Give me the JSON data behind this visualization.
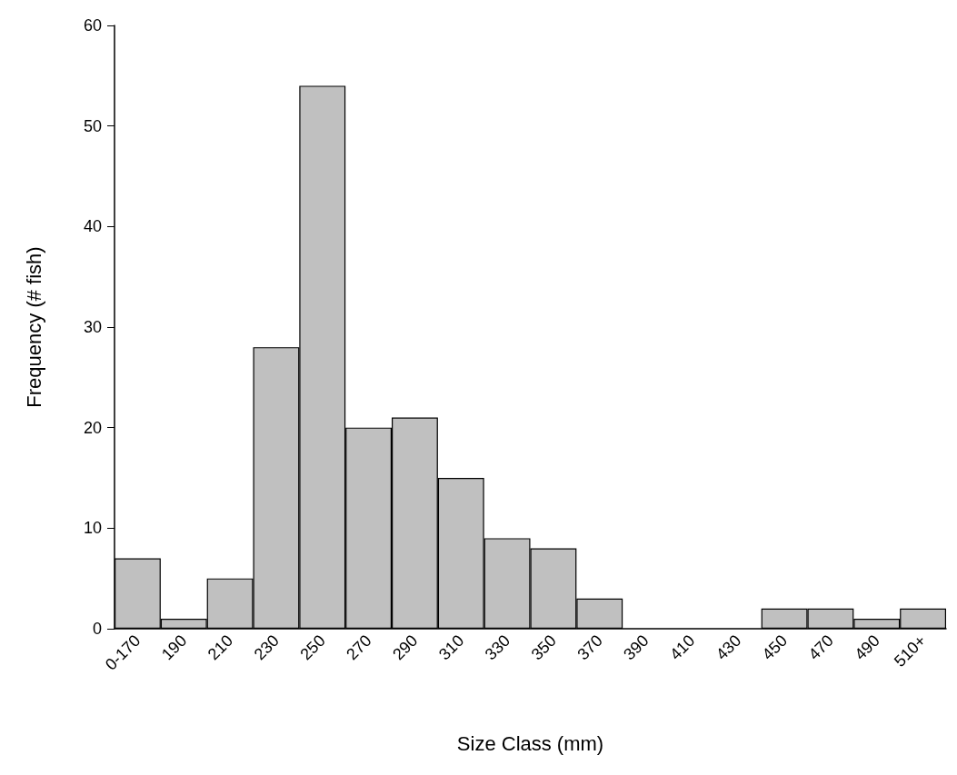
{
  "chart_data": {
    "type": "bar",
    "xlabel": "Size Class (mm)",
    "ylabel": "Frequency (# fish)",
    "categories": [
      "0-170",
      "190",
      "210",
      "230",
      "250",
      "270",
      "290",
      "310",
      "330",
      "350",
      "370",
      "390",
      "410",
      "430",
      "450",
      "470",
      "490",
      "510+"
    ],
    "values": [
      7,
      1,
      5,
      28,
      54,
      20,
      21,
      15,
      9,
      8,
      3,
      0,
      0,
      0,
      2,
      2,
      1,
      2
    ],
    "color": "#c0c0c0",
    "ylim": [
      0,
      60
    ],
    "yticks": [
      0,
      10,
      20,
      30,
      40,
      50,
      60
    ],
    "grid": false
  }
}
